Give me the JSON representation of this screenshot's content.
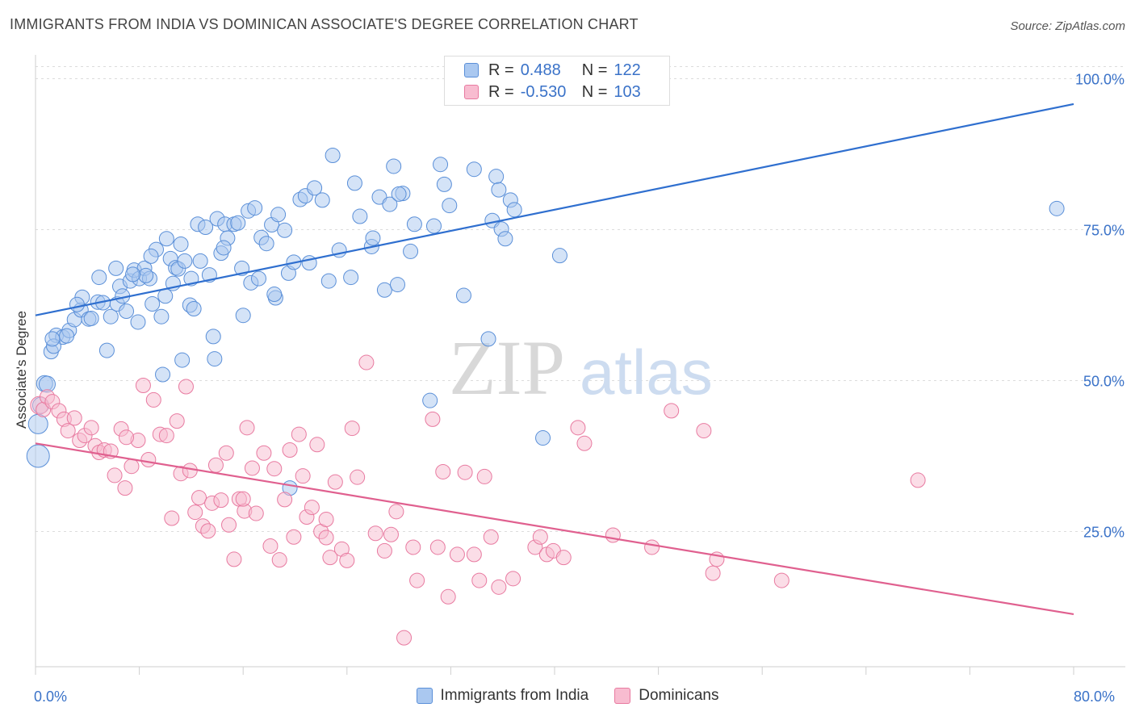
{
  "title": "IMMIGRANTS FROM INDIA VS DOMINICAN ASSOCIATE'S DEGREE CORRELATION CHART",
  "source": "Source: ZipAtlas.com",
  "watermark": {
    "zip": "ZIP",
    "atlas": "atlas"
  },
  "legend": {
    "r_label": "R =",
    "n_label": "N =",
    "rows": [
      {
        "r": "0.488",
        "n": "122",
        "color": "#aac8f0",
        "stroke": "#5a8fd8"
      },
      {
        "r": "-0.530",
        "n": "103",
        "color": "#f8bcd0",
        "stroke": "#e87aa0"
      }
    ]
  },
  "bottom_legend": [
    {
      "label": "Immigrants from India",
      "color": "#aac8f0",
      "stroke": "#5a8fd8"
    },
    {
      "label": "Dominicans",
      "color": "#f8bcd0",
      "stroke": "#e87aa0"
    }
  ],
  "chart_data": {
    "type": "scatter",
    "ylabel": "Associate's Degree",
    "x_tick_labels": [
      "0.0%",
      "80.0%"
    ],
    "y_tick_labels": [
      "100.0%",
      "75.0%",
      "50.0%",
      "25.0%"
    ],
    "y_tick_values": [
      100,
      75,
      50,
      25
    ],
    "xlim": [
      0,
      80
    ],
    "ylim": [
      0,
      102
    ],
    "grid": true,
    "series": [
      {
        "name": "Immigrants from India",
        "color": "#aac8f0",
        "stroke": "#5a8fd8",
        "trend": {
          "x": [
            0,
            80
          ],
          "y": [
            60.8,
            95.8
          ],
          "color": "#2f6fcf"
        },
        "points": [
          [
            0.2,
            37.5,
            14
          ],
          [
            0.2,
            42.8,
            12
          ],
          [
            0.4,
            45.9,
            10
          ],
          [
            0.7,
            49.5,
            10
          ],
          [
            0.9,
            49.4,
            10
          ],
          [
            1.2,
            54.8,
            9
          ],
          [
            1.6,
            57.5,
            9
          ],
          [
            2.1,
            57.2,
            9
          ],
          [
            2.6,
            58.3,
            9
          ],
          [
            1.4,
            55.7,
            9
          ],
          [
            3.0,
            60.1,
            9
          ],
          [
            3.5,
            61.7,
            9
          ],
          [
            4.1,
            60.2,
            9
          ],
          [
            3.6,
            63.8,
            9
          ],
          [
            4.8,
            63.0,
            9
          ],
          [
            5.2,
            62.9,
            9
          ],
          [
            4.9,
            67.1,
            9
          ],
          [
            5.5,
            55.0,
            9
          ],
          [
            5.8,
            60.6,
            9
          ],
          [
            6.3,
            62.7,
            9
          ],
          [
            6.5,
            65.6,
            9
          ],
          [
            6.7,
            64.0,
            9
          ],
          [
            7.0,
            61.5,
            9
          ],
          [
            7.3,
            66.5,
            9
          ],
          [
            7.6,
            68.3,
            9
          ],
          [
            7.9,
            59.7,
            9
          ],
          [
            8.0,
            66.9,
            9
          ],
          [
            8.4,
            68.6,
            9
          ],
          [
            8.8,
            66.9,
            9
          ],
          [
            8.5,
            67.4,
            9
          ],
          [
            9.0,
            62.7,
            9
          ],
          [
            9.3,
            71.7,
            9
          ],
          [
            9.7,
            60.6,
            9
          ],
          [
            10.0,
            64.0,
            9
          ],
          [
            10.1,
            73.5,
            9
          ],
          [
            10.4,
            70.2,
            9
          ],
          [
            10.8,
            68.7,
            9
          ],
          [
            11.0,
            68.5,
            9
          ],
          [
            11.5,
            69.8,
            9
          ],
          [
            11.2,
            72.6,
            9
          ],
          [
            11.9,
            62.5,
            9
          ],
          [
            12.2,
            61.9,
            9
          ],
          [
            12.5,
            75.9,
            9
          ],
          [
            12.7,
            69.8,
            9
          ],
          [
            13.1,
            75.4,
            9
          ],
          [
            13.4,
            67.5,
            9
          ],
          [
            13.7,
            57.3,
            9
          ],
          [
            14.0,
            76.8,
            9
          ],
          [
            14.3,
            71.1,
            9
          ],
          [
            14.6,
            75.9,
            9
          ],
          [
            14.8,
            73.6,
            9
          ],
          [
            15.3,
            75.9,
            9
          ],
          [
            15.6,
            76.1,
            9
          ],
          [
            15.9,
            68.6,
            9
          ],
          [
            16.4,
            78.1,
            9
          ],
          [
            16.6,
            66.2,
            9
          ],
          [
            16.9,
            78.6,
            9
          ],
          [
            17.4,
            73.7,
            9
          ],
          [
            17.8,
            72.7,
            9
          ],
          [
            18.2,
            75.8,
            9
          ],
          [
            18.5,
            63.7,
            9
          ],
          [
            18.7,
            77.5,
            9
          ],
          [
            19.2,
            74.9,
            9
          ],
          [
            19.5,
            67.8,
            9
          ],
          [
            19.9,
            69.6,
            9
          ],
          [
            20.4,
            80.0,
            9
          ],
          [
            20.8,
            80.6,
            9
          ],
          [
            21.1,
            69.5,
            9
          ],
          [
            21.5,
            81.9,
            9
          ],
          [
            22.1,
            79.9,
            9
          ],
          [
            22.6,
            66.5,
            9
          ],
          [
            22.9,
            87.3,
            9
          ],
          [
            23.4,
            71.6,
            9
          ],
          [
            24.3,
            67.1,
            9
          ],
          [
            24.6,
            82.7,
            9
          ],
          [
            25.0,
            77.2,
            9
          ],
          [
            25.9,
            72.2,
            9
          ],
          [
            26.5,
            80.4,
            9
          ],
          [
            26.9,
            65.0,
            9
          ],
          [
            27.3,
            79.2,
            9
          ],
          [
            27.6,
            85.5,
            9
          ],
          [
            27.9,
            65.9,
            9
          ],
          [
            28.3,
            81.0,
            9
          ],
          [
            28.0,
            80.9,
            9
          ],
          [
            28.9,
            71.4,
            9
          ],
          [
            29.2,
            75.9,
            9
          ],
          [
            30.4,
            46.7,
            9
          ],
          [
            30.7,
            75.6,
            9
          ],
          [
            31.2,
            85.8,
            9
          ],
          [
            31.5,
            82.5,
            9
          ],
          [
            31.9,
            79.0,
            9
          ],
          [
            33.0,
            64.1,
            9
          ],
          [
            33.8,
            85.0,
            9
          ],
          [
            34.9,
            56.9,
            9
          ],
          [
            35.2,
            76.5,
            9
          ],
          [
            35.5,
            83.8,
            9
          ],
          [
            35.7,
            81.6,
            9
          ],
          [
            35.9,
            75.1,
            9
          ],
          [
            36.2,
            73.5,
            9
          ],
          [
            36.6,
            79.9,
            9
          ],
          [
            36.9,
            78.3,
            9
          ],
          [
            39.1,
            40.5,
            9
          ],
          [
            40.4,
            70.7,
            9
          ],
          [
            1.3,
            56.9,
            9
          ],
          [
            2.4,
            57.4,
            9
          ],
          [
            3.2,
            62.6,
            9
          ],
          [
            4.3,
            60.3,
            9
          ],
          [
            9.8,
            51.0,
            9
          ],
          [
            11.3,
            53.4,
            9
          ],
          [
            13.8,
            53.6,
            9
          ],
          [
            16.0,
            60.8,
            9
          ],
          [
            18.4,
            64.3,
            9
          ],
          [
            19.6,
            32.2,
            9
          ],
          [
            6.2,
            68.6,
            9
          ],
          [
            7.5,
            67.6,
            9
          ],
          [
            12.0,
            66.9,
            9
          ],
          [
            14.5,
            72.0,
            9
          ],
          [
            17.2,
            66.9,
            9
          ],
          [
            26.0,
            73.6,
            9
          ],
          [
            78.7,
            78.5,
            9
          ],
          [
            8.9,
            70.6,
            9
          ],
          [
            10.6,
            66.1,
            9
          ]
        ]
      },
      {
        "name": "Dominicans",
        "color": "#f8bcd0",
        "stroke": "#e87aa0",
        "trend": {
          "x": [
            0,
            80
          ],
          "y": [
            39.6,
            11.3
          ],
          "color": "#e0608f"
        },
        "points": [
          [
            0.3,
            45.9,
            11
          ],
          [
            0.6,
            45.2,
            9
          ],
          [
            0.9,
            47.3,
            9
          ],
          [
            1.3,
            46.5,
            9
          ],
          [
            1.8,
            45.0,
            9
          ],
          [
            2.2,
            43.6,
            9
          ],
          [
            2.5,
            41.7,
            9
          ],
          [
            3.0,
            43.8,
            9
          ],
          [
            3.4,
            40.1,
            9
          ],
          [
            3.8,
            40.9,
            9
          ],
          [
            4.3,
            42.2,
            9
          ],
          [
            4.6,
            39.2,
            9
          ],
          [
            4.9,
            38.1,
            9
          ],
          [
            5.3,
            38.5,
            9
          ],
          [
            5.8,
            38.3,
            9
          ],
          [
            6.1,
            34.3,
            9
          ],
          [
            6.6,
            42.0,
            9
          ],
          [
            6.9,
            32.2,
            9
          ],
          [
            7.4,
            35.8,
            9
          ],
          [
            7.9,
            40.1,
            9
          ],
          [
            8.3,
            49.2,
            9
          ],
          [
            8.7,
            36.9,
            9
          ],
          [
            9.1,
            46.8,
            9
          ],
          [
            9.6,
            41.1,
            9
          ],
          [
            10.1,
            40.9,
            9
          ],
          [
            10.5,
            27.2,
            9
          ],
          [
            10.9,
            43.3,
            9
          ],
          [
            11.2,
            34.6,
            9
          ],
          [
            11.6,
            49.0,
            9
          ],
          [
            11.9,
            35.1,
            9
          ],
          [
            12.3,
            28.2,
            9
          ],
          [
            12.6,
            30.6,
            9
          ],
          [
            12.9,
            25.9,
            9
          ],
          [
            13.3,
            25.1,
            9
          ],
          [
            13.6,
            29.7,
            9
          ],
          [
            13.9,
            36.0,
            9
          ],
          [
            14.3,
            30.2,
            9
          ],
          [
            14.7,
            38.0,
            9
          ],
          [
            14.9,
            26.1,
            9
          ],
          [
            15.3,
            20.4,
            9
          ],
          [
            15.7,
            30.4,
            9
          ],
          [
            16.1,
            28.4,
            9
          ],
          [
            16.3,
            42.2,
            9
          ],
          [
            16.7,
            35.5,
            9
          ],
          [
            17.0,
            28.0,
            9
          ],
          [
            17.6,
            38.0,
            9
          ],
          [
            18.1,
            22.6,
            9
          ],
          [
            18.4,
            35.4,
            9
          ],
          [
            18.8,
            20.3,
            9
          ],
          [
            19.2,
            30.3,
            9
          ],
          [
            19.6,
            38.5,
            9
          ],
          [
            19.9,
            24.1,
            9
          ],
          [
            20.3,
            41.1,
            9
          ],
          [
            20.6,
            34.2,
            9
          ],
          [
            20.9,
            27.4,
            9
          ],
          [
            21.3,
            29.0,
            9
          ],
          [
            21.7,
            39.4,
            9
          ],
          [
            22.0,
            25.0,
            9
          ],
          [
            22.4,
            24.0,
            9
          ],
          [
            22.7,
            20.7,
            9
          ],
          [
            23.1,
            33.2,
            9
          ],
          [
            23.6,
            22.1,
            9
          ],
          [
            24.0,
            20.2,
            9
          ],
          [
            24.4,
            42.1,
            9
          ],
          [
            24.8,
            34.0,
            9
          ],
          [
            25.5,
            53.0,
            9
          ],
          [
            26.2,
            24.7,
            9
          ],
          [
            26.9,
            21.8,
            9
          ],
          [
            27.4,
            24.5,
            9
          ],
          [
            27.8,
            28.3,
            9
          ],
          [
            28.4,
            7.4,
            9
          ],
          [
            29.1,
            22.4,
            9
          ],
          [
            29.4,
            16.9,
            9
          ],
          [
            30.6,
            43.6,
            9
          ],
          [
            31.0,
            22.4,
            9
          ],
          [
            31.4,
            34.9,
            9
          ],
          [
            31.8,
            14.2,
            9
          ],
          [
            32.5,
            21.2,
            9
          ],
          [
            33.1,
            34.8,
            9
          ],
          [
            33.8,
            21.2,
            9
          ],
          [
            34.2,
            16.9,
            9
          ],
          [
            34.6,
            34.1,
            9
          ],
          [
            35.1,
            24.1,
            9
          ],
          [
            35.7,
            15.8,
            9
          ],
          [
            36.8,
            17.2,
            9
          ],
          [
            38.5,
            22.4,
            9
          ],
          [
            38.9,
            24.1,
            9
          ],
          [
            39.4,
            21.2,
            9
          ],
          [
            39.9,
            21.8,
            9
          ],
          [
            40.7,
            20.7,
            9
          ],
          [
            41.8,
            42.2,
            9
          ],
          [
            42.3,
            39.6,
            9
          ],
          [
            44.5,
            24.4,
            9
          ],
          [
            47.5,
            22.4,
            9
          ],
          [
            49.0,
            45.0,
            9
          ],
          [
            51.5,
            41.7,
            9
          ],
          [
            52.2,
            18.1,
            9
          ],
          [
            52.5,
            20.4,
            9
          ],
          [
            57.5,
            16.9,
            9
          ],
          [
            68.0,
            33.5,
            9
          ],
          [
            7.0,
            40.6,
            9
          ],
          [
            16.0,
            30.4,
            9
          ],
          [
            22.4,
            27.0,
            9
          ]
        ]
      }
    ]
  }
}
